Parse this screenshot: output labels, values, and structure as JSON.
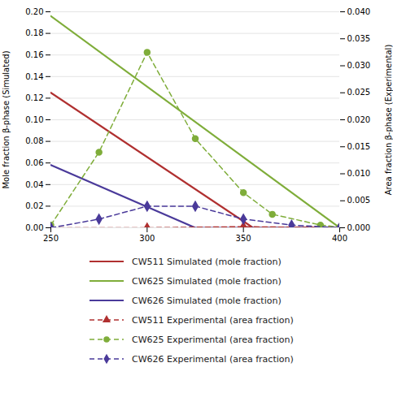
{
  "chart_data": {
    "type": "line",
    "xlabel": null,
    "ylabel": "Mole fraction β-phase (Simulated)",
    "y2label": "Area fraction β-phase (Experimental)",
    "xlim": [
      250,
      400
    ],
    "ylim": [
      0,
      0.2
    ],
    "y2lim": [
      0,
      0.04
    ],
    "xticks": [
      250,
      300,
      350,
      400
    ],
    "yticks": [
      {
        "value": 0.0,
        "label": "0.00"
      },
      {
        "value": 0.02,
        "label": "0.02"
      },
      {
        "value": 0.04,
        "label": "0.04"
      },
      {
        "value": 0.06,
        "label": "0.06"
      },
      {
        "value": 0.08,
        "label": "0.08"
      },
      {
        "value": 0.1,
        "label": "0.10"
      },
      {
        "value": 0.12,
        "label": "0.12"
      },
      {
        "value": 0.14,
        "label": "0.14"
      },
      {
        "value": 0.16,
        "label": "0.16"
      },
      {
        "value": 0.18,
        "label": "0.18"
      },
      {
        "value": 0.2,
        "label": "0.20"
      }
    ],
    "y2ticks": [
      {
        "value": 0.0,
        "label": "0.000"
      },
      {
        "value": 0.005,
        "label": "0.005"
      },
      {
        "value": 0.01,
        "label": "0.010"
      },
      {
        "value": 0.015,
        "label": "0.015"
      },
      {
        "value": 0.02,
        "label": "0.020"
      },
      {
        "value": 0.025,
        "label": "0.025"
      },
      {
        "value": 0.03,
        "label": "0.030"
      },
      {
        "value": 0.035,
        "label": "0.035"
      },
      {
        "value": 0.04,
        "label": "0.040"
      }
    ],
    "grid": "y",
    "legend": "bottom",
    "series": [
      {
        "name": "CW511 Simulated (mole fraction)",
        "color": "#b03030",
        "line_style": "solid",
        "axis": "y",
        "x": [
          250,
          355,
          400
        ],
        "values": [
          0.125,
          0.0,
          0.0
        ]
      },
      {
        "name": "CW625 Simulated (mole fraction)",
        "color": "#7fad3a",
        "line_style": "solid",
        "axis": "y",
        "x": [
          250,
          400
        ],
        "values": [
          0.196,
          0.0
        ]
      },
      {
        "name": "CW626 Simulated (mole fraction)",
        "color": "#4a3a9a",
        "line_style": "solid",
        "axis": "y",
        "x": [
          250,
          325,
          400
        ],
        "values": [
          0.058,
          0.0,
          0.0
        ]
      },
      {
        "name": "CW511 Experimental (area fraction)",
        "color": "#b03030",
        "line_style": "dashed",
        "marker": "triangle",
        "axis": "y2",
        "x": [
          250,
          300,
          350,
          400
        ],
        "values": [
          0.0,
          0.0,
          0.0002,
          0.0
        ]
      },
      {
        "name": "CW625 Experimental (area fraction)",
        "color": "#7fad3a",
        "line_style": "dashed",
        "marker": "circle",
        "axis": "y2",
        "x": [
          250,
          275,
          300,
          325,
          350,
          365,
          390,
          400
        ],
        "values": [
          0.0005,
          0.014,
          0.0325,
          0.0165,
          0.0065,
          0.0025,
          0.0005,
          0.0001
        ]
      },
      {
        "name": "CW626 Experimental (area fraction)",
        "color": "#4a3a9a",
        "line_style": "dashed",
        "marker": "diamond",
        "axis": "y2",
        "x": [
          250,
          275,
          300,
          325,
          350,
          375,
          400
        ],
        "values": [
          0.0,
          0.0016,
          0.004,
          0.004,
          0.0016,
          0.0005,
          0.0
        ]
      }
    ]
  }
}
